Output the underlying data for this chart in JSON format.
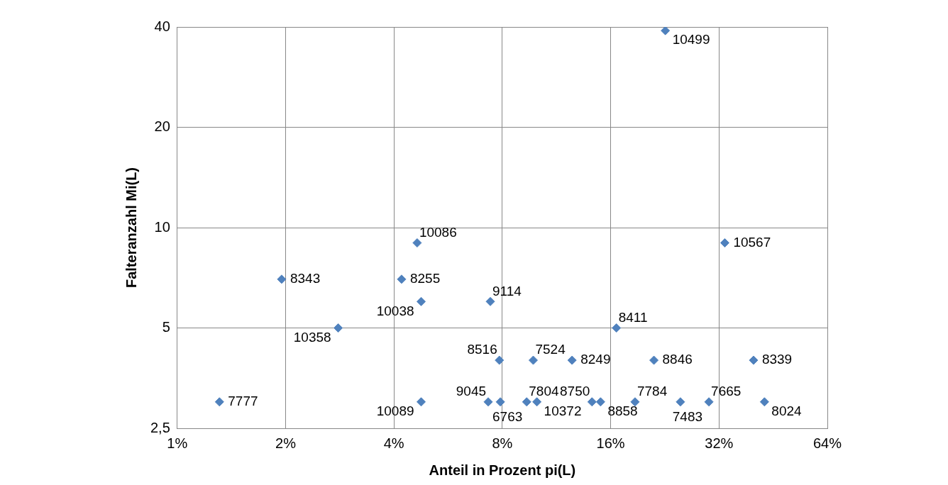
{
  "chart_data": {
    "type": "scatter",
    "xlabel": "Anteil in Prozent pi(L)",
    "ylabel": "Falteranzahl Mi(L)",
    "log": "xy",
    "grid": true,
    "marker": "diamond",
    "x": [
      1.31,
      1.95,
      2.8,
      4.64,
      4.2,
      4.76,
      4.76,
      7.41,
      7.85,
      7.31,
      7.9,
      9.75,
      9.35,
      9.98,
      12.5,
      14.2,
      15,
      16.6,
      18.7,
      21.1,
      22.7,
      25,
      30,
      33.2,
      39.9,
      42.8
    ],
    "series": [
      {
        "color": "#4f81bd",
        "values": [
          3,
          7,
          5,
          9,
          7,
          6,
          3,
          6,
          4,
          3,
          3,
          4,
          3,
          3,
          4,
          3,
          3,
          5,
          3,
          4,
          39,
          3,
          3,
          9,
          4,
          3
        ]
      }
    ],
    "xlim": [
      1,
      64
    ],
    "xticks": [
      {
        "value": 1,
        "label": "1%"
      },
      {
        "value": 2,
        "label": "2%"
      },
      {
        "value": 4,
        "label": "4%"
      },
      {
        "value": 8,
        "label": "8%"
      },
      {
        "value": 16,
        "label": "16%"
      },
      {
        "value": 32,
        "label": "32%"
      },
      {
        "value": 64,
        "label": "64%"
      }
    ],
    "ylim": [
      2.5,
      40
    ],
    "yticks": [
      {
        "value": 2.5,
        "label": "2,5"
      },
      5,
      10,
      20,
      40
    ],
    "annotations": [
      {
        "text": "7777",
        "x": 1.31,
        "y": 3
      },
      {
        "text": "8343",
        "x": 1.95,
        "y": 7
      },
      {
        "text": "10358",
        "x": 2.8,
        "y": 5
      },
      {
        "text": "10086",
        "x": 4.64,
        "y": 9
      },
      {
        "text": "8255",
        "x": 4.2,
        "y": 7
      },
      {
        "text": "10038",
        "x": 4.76,
        "y": 6
      },
      {
        "text": "10089",
        "x": 4.76,
        "y": 3
      },
      {
        "text": "9114",
        "x": 7.41,
        "y": 6
      },
      {
        "text": "8516",
        "x": 7.85,
        "y": 4
      },
      {
        "text": "9045",
        "x": 7.31,
        "y": 3
      },
      {
        "text": "6763",
        "x": 7.9,
        "y": 3
      },
      {
        "text": "7524",
        "x": 9.75,
        "y": 4
      },
      {
        "text": "7804",
        "x": 9.35,
        "y": 3
      },
      {
        "text": "10372",
        "x": 9.98,
        "y": 3
      },
      {
        "text": "8249",
        "x": 12.5,
        "y": 4
      },
      {
        "text": "8750",
        "x": 14.2,
        "y": 3
      },
      {
        "text": "8858",
        "x": 15,
        "y": 3
      },
      {
        "text": "8411",
        "x": 16.6,
        "y": 5
      },
      {
        "text": "7784",
        "x": 18.7,
        "y": 3
      },
      {
        "text": "8846",
        "x": 21.1,
        "y": 4
      },
      {
        "text": "10499",
        "x": 22.7,
        "y": 39
      },
      {
        "text": "7483",
        "x": 25,
        "y": 3
      },
      {
        "text": "7665",
        "x": 30,
        "y": 3
      },
      {
        "text": "10567",
        "x": 33.2,
        "y": 9
      },
      {
        "text": "8339",
        "x": 39.9,
        "y": 4
      },
      {
        "text": "8024",
        "x": 42.8,
        "y": 3
      }
    ]
  }
}
